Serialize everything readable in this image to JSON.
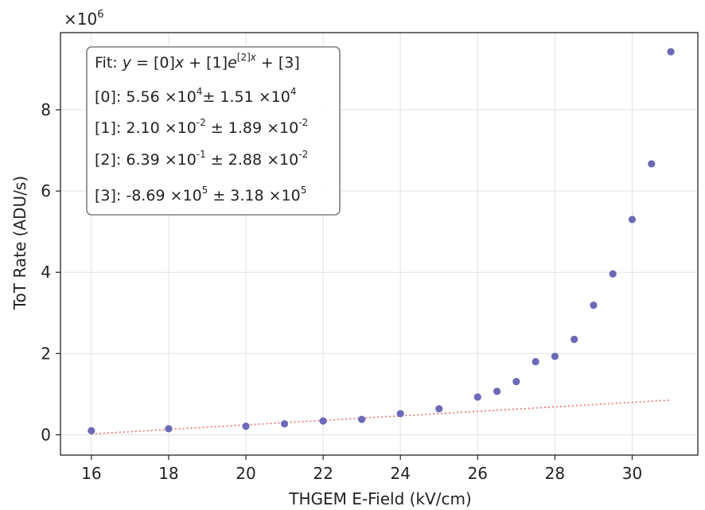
{
  "chart_data": {
    "type": "scatter",
    "title": "",
    "xlabel": "THGEM E-Field (kV/cm)",
    "ylabel": "ToT Rate (ADU/s)",
    "y_multiplier_label": {
      "base": "×10",
      "exp": "6"
    },
    "xlim": [
      15.2,
      31.7
    ],
    "ylim": [
      -0.5,
      9.9
    ],
    "xticks": [
      16,
      18,
      20,
      22,
      24,
      26,
      28,
      30
    ],
    "yticks": [
      0,
      2,
      4,
      6,
      8
    ],
    "xtick_labels": [
      "16",
      "18",
      "20",
      "22",
      "24",
      "26",
      "28",
      "30"
    ],
    "ytick_labels": [
      "0",
      "2",
      "4",
      "6",
      "8"
    ],
    "grid": true,
    "points": {
      "color": "#6b69b8",
      "x": [
        16,
        18,
        20,
        21,
        22,
        23,
        24,
        25,
        26,
        26.5,
        27,
        27.5,
        28,
        28.5,
        29,
        29.5,
        30,
        30.5,
        31
      ],
      "y": [
        0.1,
        0.15,
        0.21,
        0.27,
        0.34,
        0.38,
        0.52,
        0.64,
        0.93,
        1.07,
        1.31,
        1.8,
        1.93,
        2.35,
        3.19,
        3.96,
        5.3,
        6.67,
        9.43
      ]
    },
    "fit": {
      "color": "#e8101a",
      "linear_color": "#f07a7a",
      "x_range": [
        16,
        31
      ],
      "params": [
        0.0556,
        0.021,
        0.639,
        -0.869
      ],
      "legend_lines": [
        {
          "key": "fit",
          "parts": [
            {
              "t": "Fit: "
            },
            {
              "t": "y",
              "i": true
            },
            {
              "t": " = [0]"
            },
            {
              "t": "x",
              "i": true
            },
            {
              "t": " + [1]"
            },
            {
              "t": "e",
              "i": true
            },
            {
              "t": "[2]",
              "sup": true
            },
            {
              "t": "x",
              "sup": true,
              "i": true
            },
            {
              "t": " + [3]"
            }
          ]
        },
        {
          "key": "p0",
          "parts": [
            {
              "t": "[0]: 5.56 ×10"
            },
            {
              "t": "4",
              "sup": true
            },
            {
              "t": "± 1.51 ×10"
            },
            {
              "t": "4",
              "sup": true
            }
          ]
        },
        {
          "key": "p1",
          "parts": [
            {
              "t": "[1]: 2.10 ×10"
            },
            {
              "t": "-2",
              "sup": true
            },
            {
              "t": " ± 1.89 ×10"
            },
            {
              "t": "-2",
              "sup": true
            }
          ]
        },
        {
          "key": "p2",
          "parts": [
            {
              "t": "[2]: 6.39 ×10"
            },
            {
              "t": "-1",
              "sup": true
            },
            {
              "t": " ± 2.88 ×10"
            },
            {
              "t": "-2",
              "sup": true
            }
          ]
        },
        {
          "key": "p3",
          "parts": [
            {
              "t": "[3]: -8.69 ×10"
            },
            {
              "t": "5",
              "sup": true
            },
            {
              "t": " ± 3.18 ×10"
            },
            {
              "t": "5",
              "sup": true
            }
          ]
        }
      ]
    }
  }
}
